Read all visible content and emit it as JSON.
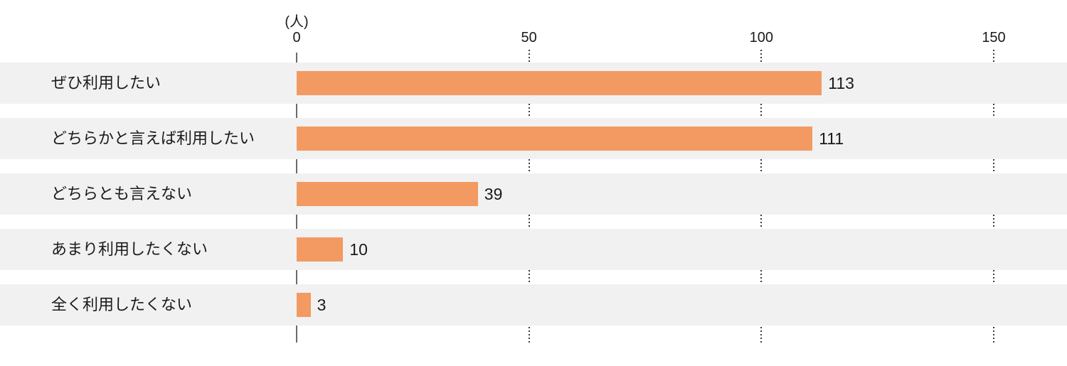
{
  "chart_data": {
    "type": "bar",
    "orientation": "horizontal",
    "title": "",
    "unit_label": "(人)",
    "categories": [
      "ぜひ利用したい",
      "どちらかと言えば利用したい",
      "どちらとも言えない",
      "あまり利用したくない",
      "全く利用したくない"
    ],
    "values": [
      113,
      111,
      39,
      10,
      3
    ],
    "xlim": [
      0,
      150
    ],
    "xticks": [
      0,
      50,
      100,
      150
    ],
    "legend": null,
    "grid": "dotted-vertical",
    "bar_color": "#F29A62",
    "row_bg": "#F1F1F1",
    "axis_line_color": "#6B6B6B",
    "grid_dot_color": "#3C3C3C",
    "text_color": "#1A1A1A"
  }
}
